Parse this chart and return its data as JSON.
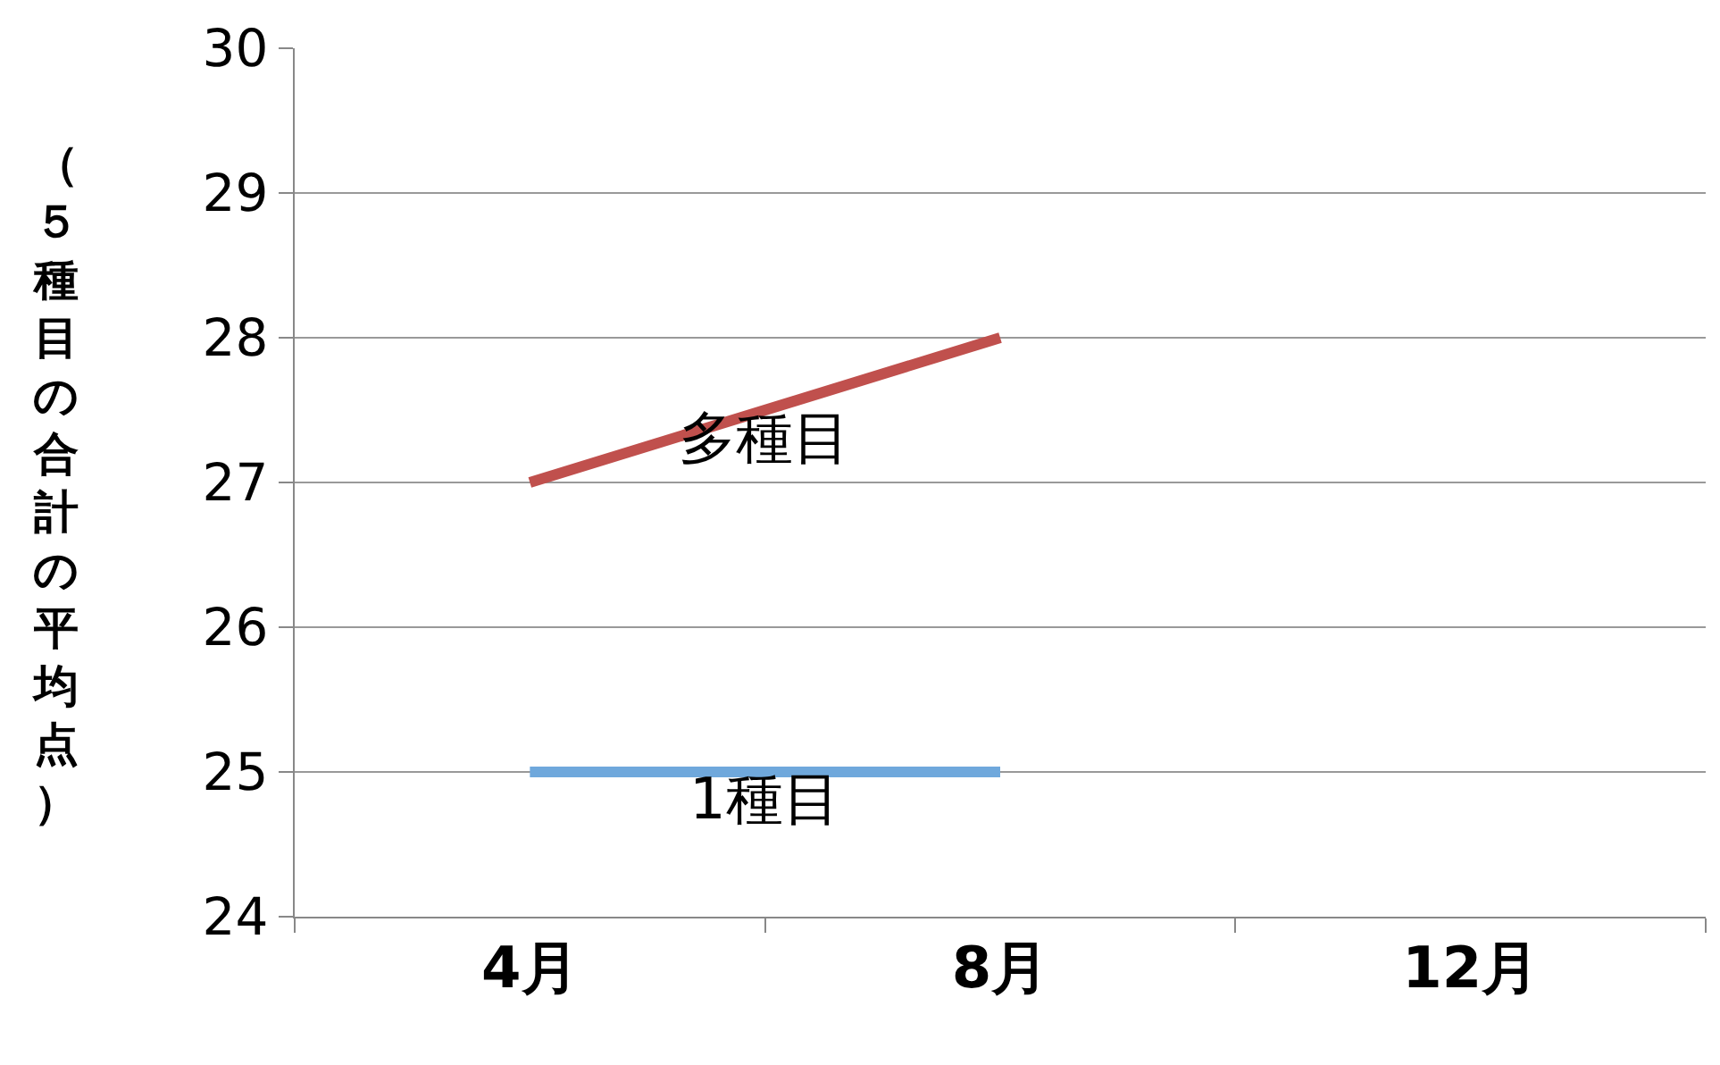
{
  "chart_data": {
    "type": "line",
    "ylabel": "（５種目の合計の平均点）",
    "categories": [
      "4月",
      "8月",
      "12月"
    ],
    "series": [
      {
        "name": "多種目",
        "color": "#c0504d",
        "values": [
          27,
          28,
          null
        ]
      },
      {
        "name": "1種目",
        "color": "#6fa8dc",
        "values": [
          25,
          25,
          null
        ]
      }
    ],
    "ylim": [
      24,
      30
    ],
    "yticks": [
      24,
      25,
      26,
      27,
      28,
      29,
      30
    ],
    "grid": "y",
    "legend": false,
    "marker": "none",
    "line_style": "solid"
  }
}
